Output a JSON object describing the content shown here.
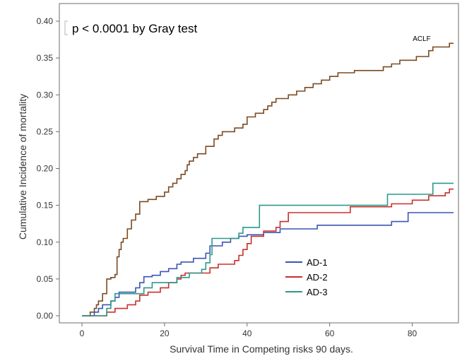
{
  "chart_data": {
    "type": "line",
    "annotation": "p < 0.0001 by Gray test",
    "xlabel": "Survival Time in Competing risks 90 days.",
    "ylabel": "Cumulative Incidence of mortality",
    "xlim": [
      -3,
      90
    ],
    "ylim": [
      0,
      0.4
    ],
    "x_ticks": [
      "0",
      "20",
      "40",
      "60",
      "80"
    ],
    "y_ticks": [
      "0.00",
      "0.05",
      "0.10",
      "0.15",
      "0.20",
      "0.25",
      "0.30",
      "0.35",
      "0.40"
    ],
    "grid": false,
    "legend_position": "bottom-center",
    "series": [
      {
        "name": "ACLF",
        "label_on_chart": true,
        "color": "#7b4a22",
        "points": [
          [
            0,
            0
          ],
          [
            2,
            0
          ],
          [
            2,
            0.005
          ],
          [
            3,
            0.005
          ],
          [
            3,
            0.01
          ],
          [
            3.5,
            0.01
          ],
          [
            3.5,
            0.015
          ],
          [
            4,
            0.015
          ],
          [
            4,
            0.02
          ],
          [
            5,
            0.02
          ],
          [
            5,
            0.03
          ],
          [
            6,
            0.03
          ],
          [
            6,
            0.05
          ],
          [
            7,
            0.05
          ],
          [
            7,
            0.052
          ],
          [
            8,
            0.052
          ],
          [
            8,
            0.056
          ],
          [
            8.5,
            0.056
          ],
          [
            8.5,
            0.08
          ],
          [
            9,
            0.08
          ],
          [
            9,
            0.09
          ],
          [
            9.5,
            0.09
          ],
          [
            9.5,
            0.1
          ],
          [
            10,
            0.1
          ],
          [
            10,
            0.105
          ],
          [
            11,
            0.105
          ],
          [
            11,
            0.118
          ],
          [
            12,
            0.118
          ],
          [
            12,
            0.13
          ],
          [
            13,
            0.13
          ],
          [
            13,
            0.138
          ],
          [
            14,
            0.138
          ],
          [
            14,
            0.155
          ],
          [
            16,
            0.155
          ],
          [
            16,
            0.158
          ],
          [
            18,
            0.158
          ],
          [
            18,
            0.162
          ],
          [
            20,
            0.162
          ],
          [
            20,
            0.168
          ],
          [
            21,
            0.168
          ],
          [
            21,
            0.175
          ],
          [
            22,
            0.175
          ],
          [
            22,
            0.18
          ],
          [
            23,
            0.18
          ],
          [
            23,
            0.186
          ],
          [
            24,
            0.186
          ],
          [
            24,
            0.192
          ],
          [
            25,
            0.192
          ],
          [
            25,
            0.197
          ],
          [
            25.5,
            0.197
          ],
          [
            25.5,
            0.205
          ],
          [
            26,
            0.205
          ],
          [
            26,
            0.21
          ],
          [
            27,
            0.21
          ],
          [
            27,
            0.215
          ],
          [
            28,
            0.215
          ],
          [
            28,
            0.22
          ],
          [
            30,
            0.22
          ],
          [
            30,
            0.23
          ],
          [
            32,
            0.23
          ],
          [
            32,
            0.24
          ],
          [
            33,
            0.24
          ],
          [
            33,
            0.245
          ],
          [
            34,
            0.245
          ],
          [
            34,
            0.25
          ],
          [
            37,
            0.25
          ],
          [
            37,
            0.255
          ],
          [
            39,
            0.255
          ],
          [
            39,
            0.26
          ],
          [
            40,
            0.26
          ],
          [
            40,
            0.27
          ],
          [
            42,
            0.27
          ],
          [
            42,
            0.275
          ],
          [
            44,
            0.275
          ],
          [
            44,
            0.28
          ],
          [
            45,
            0.28
          ],
          [
            45,
            0.285
          ],
          [
            46,
            0.285
          ],
          [
            46,
            0.29
          ],
          [
            47,
            0.29
          ],
          [
            47,
            0.295
          ],
          [
            50,
            0.295
          ],
          [
            50,
            0.3
          ],
          [
            52,
            0.3
          ],
          [
            52,
            0.305
          ],
          [
            54,
            0.305
          ],
          [
            54,
            0.31
          ],
          [
            56,
            0.31
          ],
          [
            56,
            0.315
          ],
          [
            58,
            0.315
          ],
          [
            58,
            0.32
          ],
          [
            60,
            0.32
          ],
          [
            60,
            0.325
          ],
          [
            62,
            0.325
          ],
          [
            62,
            0.33
          ],
          [
            66,
            0.33
          ],
          [
            66,
            0.333
          ],
          [
            73,
            0.333
          ],
          [
            73,
            0.338
          ],
          [
            75,
            0.338
          ],
          [
            75,
            0.342
          ],
          [
            77,
            0.342
          ],
          [
            77,
            0.347
          ],
          [
            81,
            0.347
          ],
          [
            81,
            0.352
          ],
          [
            84,
            0.352
          ],
          [
            84,
            0.36
          ],
          [
            85,
            0.36
          ],
          [
            85,
            0.365
          ],
          [
            89,
            0.365
          ],
          [
            89,
            0.37
          ],
          [
            90,
            0.37
          ]
        ]
      },
      {
        "name": "AD-1",
        "color": "#3a55b4",
        "points": [
          [
            0,
            0
          ],
          [
            3,
            0
          ],
          [
            3,
            0.005
          ],
          [
            4,
            0.005
          ],
          [
            4,
            0.01
          ],
          [
            5,
            0.01
          ],
          [
            5,
            0.015
          ],
          [
            7,
            0.015
          ],
          [
            7,
            0.02
          ],
          [
            8,
            0.02
          ],
          [
            8,
            0.025
          ],
          [
            9,
            0.025
          ],
          [
            9,
            0.032
          ],
          [
            13,
            0.032
          ],
          [
            13,
            0.038
          ],
          [
            14,
            0.038
          ],
          [
            14,
            0.045
          ],
          [
            15,
            0.045
          ],
          [
            15,
            0.053
          ],
          [
            17,
            0.053
          ],
          [
            17,
            0.055
          ],
          [
            19,
            0.055
          ],
          [
            19,
            0.06
          ],
          [
            21,
            0.06
          ],
          [
            21,
            0.064
          ],
          [
            23,
            0.064
          ],
          [
            23,
            0.07
          ],
          [
            24,
            0.07
          ],
          [
            24,
            0.073
          ],
          [
            27,
            0.073
          ],
          [
            27,
            0.078
          ],
          [
            30,
            0.078
          ],
          [
            30,
            0.085
          ],
          [
            31,
            0.085
          ],
          [
            31,
            0.095
          ],
          [
            34,
            0.095
          ],
          [
            34,
            0.1
          ],
          [
            36,
            0.1
          ],
          [
            36,
            0.105
          ],
          [
            38,
            0.105
          ],
          [
            38,
            0.108
          ],
          [
            40,
            0.108
          ],
          [
            40,
            0.11
          ],
          [
            44,
            0.11
          ],
          [
            44,
            0.113
          ],
          [
            48,
            0.113
          ],
          [
            48,
            0.118
          ],
          [
            57,
            0.118
          ],
          [
            57,
            0.123
          ],
          [
            75,
            0.123
          ],
          [
            75,
            0.128
          ],
          [
            79,
            0.128
          ],
          [
            79,
            0.14
          ],
          [
            90,
            0.14
          ]
        ]
      },
      {
        "name": "AD-2",
        "color": "#c8302b",
        "points": [
          [
            0,
            0
          ],
          [
            6,
            0
          ],
          [
            6,
            0.005
          ],
          [
            8,
            0.005
          ],
          [
            8,
            0.01
          ],
          [
            11,
            0.01
          ],
          [
            11,
            0.015
          ],
          [
            13,
            0.015
          ],
          [
            13,
            0.02
          ],
          [
            14,
            0.02
          ],
          [
            14,
            0.028
          ],
          [
            16,
            0.028
          ],
          [
            16,
            0.032
          ],
          [
            19,
            0.032
          ],
          [
            19,
            0.038
          ],
          [
            21,
            0.038
          ],
          [
            21,
            0.045
          ],
          [
            23,
            0.045
          ],
          [
            23,
            0.05
          ],
          [
            24,
            0.05
          ],
          [
            24,
            0.055
          ],
          [
            25,
            0.055
          ],
          [
            25,
            0.058
          ],
          [
            31,
            0.058
          ],
          [
            31,
            0.065
          ],
          [
            33,
            0.065
          ],
          [
            33,
            0.07
          ],
          [
            37,
            0.07
          ],
          [
            37,
            0.075
          ],
          [
            38,
            0.075
          ],
          [
            38,
            0.082
          ],
          [
            39,
            0.082
          ],
          [
            39,
            0.09
          ],
          [
            40,
            0.09
          ],
          [
            40,
            0.098
          ],
          [
            41,
            0.098
          ],
          [
            41,
            0.108
          ],
          [
            44,
            0.108
          ],
          [
            44,
            0.115
          ],
          [
            47,
            0.115
          ],
          [
            47,
            0.12
          ],
          [
            48,
            0.12
          ],
          [
            48,
            0.128
          ],
          [
            50,
            0.128
          ],
          [
            50,
            0.14
          ],
          [
            65,
            0.14
          ],
          [
            65,
            0.148
          ],
          [
            75,
            0.148
          ],
          [
            75,
            0.152
          ],
          [
            80,
            0.152
          ],
          [
            80,
            0.157
          ],
          [
            84,
            0.157
          ],
          [
            84,
            0.163
          ],
          [
            88,
            0.163
          ],
          [
            88,
            0.167
          ],
          [
            89,
            0.167
          ],
          [
            89,
            0.172
          ],
          [
            90,
            0.172
          ]
        ]
      },
      {
        "name": "AD-3",
        "color": "#2b9a8a",
        "points": [
          [
            0,
            0
          ],
          [
            6,
            0
          ],
          [
            6,
            0.01
          ],
          [
            7,
            0.01
          ],
          [
            7,
            0.02
          ],
          [
            8,
            0.02
          ],
          [
            8,
            0.03
          ],
          [
            15,
            0.03
          ],
          [
            15,
            0.038
          ],
          [
            17,
            0.038
          ],
          [
            17,
            0.045
          ],
          [
            23,
            0.045
          ],
          [
            23,
            0.052
          ],
          [
            26,
            0.052
          ],
          [
            26,
            0.058
          ],
          [
            29,
            0.058
          ],
          [
            29,
            0.063
          ],
          [
            30,
            0.063
          ],
          [
            30,
            0.072
          ],
          [
            31,
            0.072
          ],
          [
            31,
            0.083
          ],
          [
            31.5,
            0.083
          ],
          [
            31.5,
            0.105
          ],
          [
            38,
            0.105
          ],
          [
            38,
            0.112
          ],
          [
            39,
            0.112
          ],
          [
            39,
            0.12
          ],
          [
            43,
            0.12
          ],
          [
            43,
            0.15
          ],
          [
            74,
            0.15
          ],
          [
            74,
            0.165
          ],
          [
            85,
            0.165
          ],
          [
            85,
            0.18
          ],
          [
            90,
            0.18
          ]
        ]
      }
    ]
  }
}
